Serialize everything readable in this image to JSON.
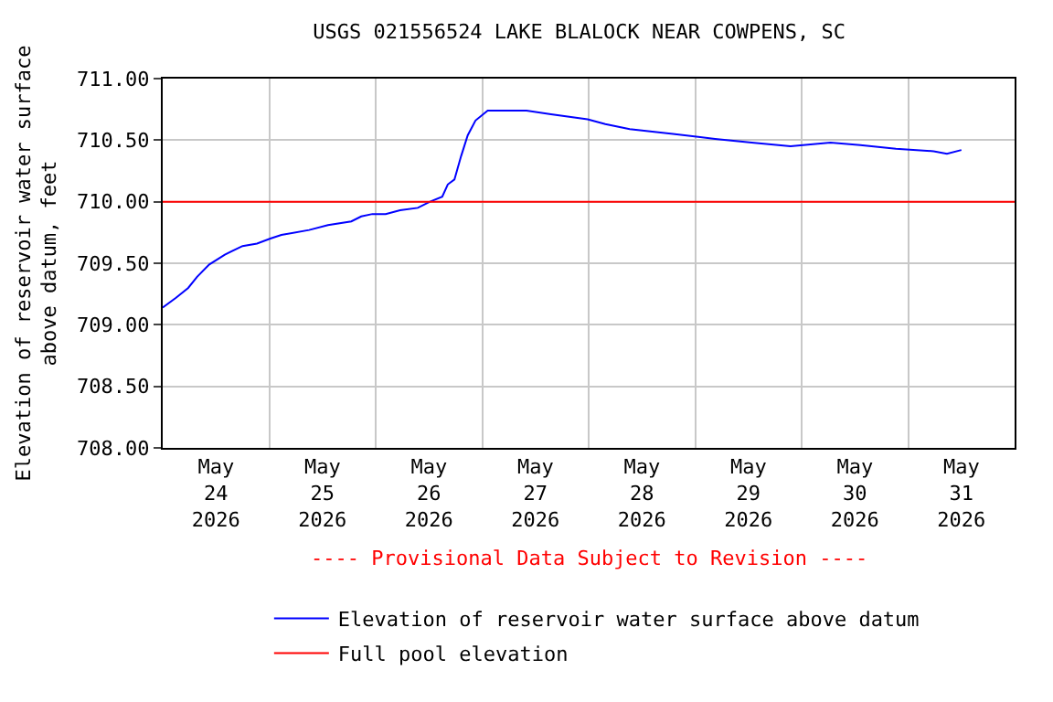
{
  "chart_data": {
    "type": "line",
    "title": "USGS 021556524 LAKE BLALOCK NEAR COWPENS, SC",
    "ylabel": "Elevation of reservoir water surface\nabove datum, feet",
    "annotations": [
      "---- Provisional Data Subject to Revision ----"
    ],
    "xlim": [
      "2026-05-24T00:00",
      "2026-06-01T00:00"
    ],
    "xticks": [
      {
        "value": "2026-05-24T12:00",
        "label": "May\n24\n2026"
      },
      {
        "value": "2026-05-25T12:00",
        "label": "May\n25\n2026"
      },
      {
        "value": "2026-05-26T12:00",
        "label": "May\n26\n2026"
      },
      {
        "value": "2026-05-27T12:00",
        "label": "May\n27\n2026"
      },
      {
        "value": "2026-05-28T12:00",
        "label": "May\n28\n2026"
      },
      {
        "value": "2026-05-29T12:00",
        "label": "May\n29\n2026"
      },
      {
        "value": "2026-05-30T12:00",
        "label": "May\n30\n2026"
      },
      {
        "value": "2026-05-31T12:00",
        "label": "May\n31\n2026"
      }
    ],
    "ylim": [
      708.0,
      711.0
    ],
    "yticks": [
      {
        "value": 708.0,
        "label": "708.00"
      },
      {
        "value": 708.5,
        "label": "708.50"
      },
      {
        "value": 709.0,
        "label": "709.00"
      },
      {
        "value": 709.5,
        "label": "709.50"
      },
      {
        "value": 710.0,
        "label": "710.00"
      },
      {
        "value": 710.5,
        "label": "710.50"
      },
      {
        "value": 711.0,
        "label": "711.00"
      }
    ],
    "grid": true,
    "legend": "bottom",
    "marker": "none",
    "line_style": "solid",
    "series": [
      {
        "name": "Elevation of reservoir water surface above datum",
        "color": "#0000ff",
        "x": [
          "2026-05-24T00:00",
          "2026-05-24T03:00",
          "2026-05-24T05:45",
          "2026-05-24T07:45",
          "2026-05-24T10:30",
          "2026-05-24T14:00",
          "2026-05-24T18:00",
          "2026-05-24T21:15",
          "2026-05-25T00:15",
          "2026-05-25T02:45",
          "2026-05-25T09:00",
          "2026-05-25T13:15",
          "2026-05-25T18:30",
          "2026-05-25T20:45",
          "2026-05-25T23:15",
          "2026-05-26T02:15",
          "2026-05-26T05:30",
          "2026-05-26T09:30",
          "2026-05-26T12:15",
          "2026-05-26T15:00",
          "2026-05-26T16:15",
          "2026-05-26T17:45",
          "2026-05-26T19:15",
          "2026-05-26T20:45",
          "2026-05-26T22:30",
          "2026-05-27T01:15",
          "2026-05-27T10:00",
          "2026-05-27T15:30",
          "2026-05-27T23:45",
          "2026-05-28T03:45",
          "2026-05-28T09:15",
          "2026-05-28T19:00",
          "2026-05-29T04:30",
          "2026-05-29T12:45",
          "2026-05-29T21:30",
          "2026-05-30T06:30",
          "2026-05-30T13:15",
          "2026-05-30T21:15",
          "2026-05-31T05:45",
          "2026-05-31T08:45",
          "2026-05-31T12:00"
        ],
        "values": [
          709.14,
          709.22,
          709.3,
          709.39,
          709.49,
          709.57,
          709.64,
          709.66,
          709.7,
          709.73,
          709.77,
          709.81,
          709.84,
          709.88,
          709.9,
          709.9,
          709.93,
          709.95,
          710.0,
          710.04,
          710.14,
          710.18,
          710.37,
          710.54,
          710.66,
          710.74,
          710.74,
          710.71,
          710.67,
          710.63,
          710.59,
          710.55,
          710.51,
          710.48,
          710.45,
          710.48,
          710.46,
          710.43,
          710.41,
          710.39,
          710.42
        ]
      },
      {
        "name": "Full pool elevation",
        "color": "#ff0000",
        "x": [
          "2026-05-24T00:00",
          "2026-06-01T00:00"
        ],
        "values": [
          710.0,
          710.0
        ]
      }
    ]
  }
}
